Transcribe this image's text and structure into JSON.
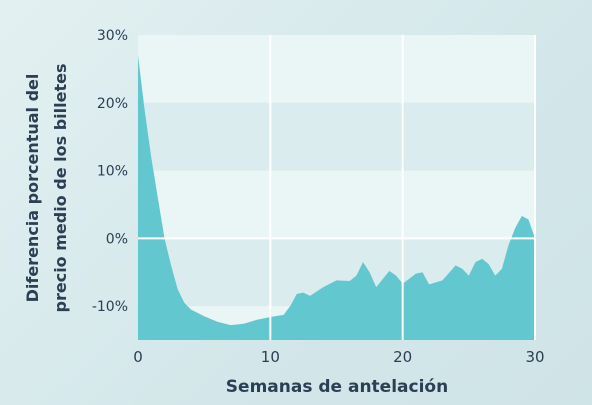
{
  "chart_data": {
    "type": "area",
    "xlabel": "Semanas de antelación",
    "ylabel_lines": [
      "Diferencia porcentual del",
      "precio medio de los billetes"
    ],
    "xlim": [
      0,
      30
    ],
    "ylim": [
      -15,
      30
    ],
    "x_ticks": [
      {
        "value": 0,
        "label": "0"
      },
      {
        "value": 10,
        "label": "10"
      },
      {
        "value": 20,
        "label": "20"
      },
      {
        "value": 30,
        "label": "30"
      }
    ],
    "y_ticks": [
      {
        "value": 30,
        "label": "30%"
      },
      {
        "value": 20,
        "label": "20%"
      },
      {
        "value": 10,
        "label": "10%"
      },
      {
        "value": 0,
        "label": "0%"
      },
      {
        "value": -10,
        "label": "-10%"
      }
    ],
    "grid": true,
    "colors": {
      "fill": "#63c7cf",
      "band_light": "#eaf5f6",
      "band_dark": "#dbecef",
      "grid": "#ffffff",
      "text": "#2b3f55"
    },
    "series": [
      {
        "x": [
          0,
          0.5,
          1,
          1.5,
          2,
          2.5,
          3,
          3.5,
          4,
          4.5,
          5,
          6,
          7,
          8,
          9,
          10,
          11,
          11.5,
          12,
          12.5,
          13,
          14,
          15,
          16,
          16.5,
          17,
          17.5,
          18,
          18.5,
          19,
          19.5,
          20,
          21,
          21.5,
          22,
          23,
          24,
          24.5,
          25,
          25.5,
          26,
          26.5,
          27,
          27.5,
          28,
          28.5,
          29,
          29.5,
          30
        ],
        "y": [
          27,
          19,
          12,
          6,
          0,
          -4,
          -7.5,
          -9.5,
          -10.5,
          -11,
          -11.5,
          -12.3,
          -12.8,
          -12.6,
          -12,
          -11.6,
          -11.3,
          -10,
          -8.2,
          -8,
          -8.5,
          -7.2,
          -6.2,
          -6.3,
          -5.5,
          -3.5,
          -5,
          -7.2,
          -6,
          -4.8,
          -5.5,
          -6.7,
          -5.2,
          -5,
          -6.8,
          -6.2,
          -4,
          -4.5,
          -5.5,
          -3.5,
          -3,
          -3.8,
          -5.5,
          -4.5,
          -1,
          1.5,
          3.3,
          2.8,
          0
        ]
      }
    ]
  }
}
